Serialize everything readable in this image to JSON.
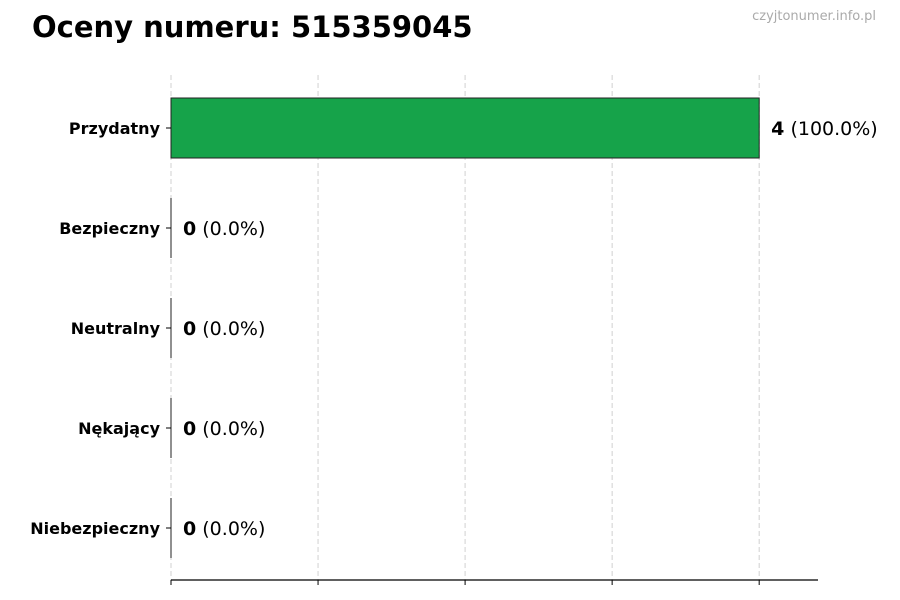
{
  "chart_data": {
    "type": "bar",
    "orientation": "horizontal",
    "title": "Oceny numeru: 515359045",
    "watermark": "czyjtonumer.info.pl",
    "categories": [
      "Przydatny",
      "Bezpieczny",
      "Neutralny",
      "Nękający",
      "Niebezpieczny"
    ],
    "values": [
      4,
      0,
      0,
      0,
      0
    ],
    "data_labels": [
      {
        "count": "4",
        "percent": "(100.0%)"
      },
      {
        "count": "0",
        "percent": "(0.0%)"
      },
      {
        "count": "0",
        "percent": "(0.0%)"
      },
      {
        "count": "0",
        "percent": "(0.0%)"
      },
      {
        "count": "0",
        "percent": "(0.0%)"
      }
    ],
    "xlim": [
      0,
      4.4
    ],
    "x_ticks": [
      0,
      1,
      2,
      3,
      4
    ],
    "x_tick_labels_shown": false,
    "grid": "vertical dashed",
    "bar_color": "#16a34a",
    "xlabel": "",
    "ylabel": ""
  }
}
